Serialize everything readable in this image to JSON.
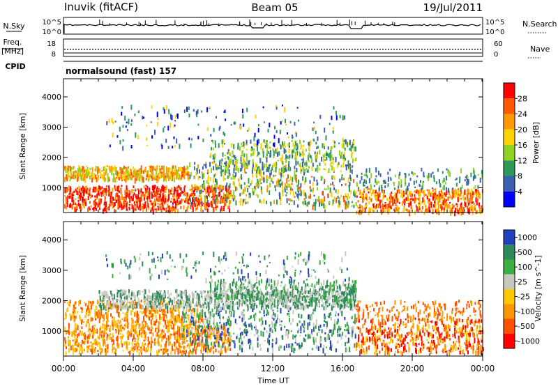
{
  "header": {
    "station": "Inuvik (fitACF)",
    "beam": "Beam 05",
    "date": "19/Jul/2011"
  },
  "chart_data": [
    {
      "type": "line",
      "panel": "noise",
      "left_label": "N.Sky",
      "right_label": "N.Search",
      "left_ticks": [
        "10^5",
        "10^0"
      ],
      "right_ticks": [
        "10^5",
        "10^0"
      ]
    },
    {
      "type": "line",
      "panel": "frequency",
      "left_label_top": "Freq.",
      "left_label_bottom": "[MHz]",
      "right_label": "Nave",
      "left_ticks": [
        "18",
        "8"
      ],
      "right_ticks": [
        "60",
        "0"
      ],
      "cpid_label": "CPID",
      "mode": "normalsound (fast) 157"
    },
    {
      "type": "heatmap",
      "panel": "power",
      "ylabel": "Slant Range [km]",
      "yticks": [
        1000,
        2000,
        3000,
        4000
      ],
      "ylim": [
        180,
        4600
      ],
      "colorbar_label": "Power [dB]",
      "colorbar_ticks": [
        "28",
        "24",
        "20",
        "16",
        "12",
        "8",
        "4"
      ],
      "colors": [
        "#ff0000",
        "#ff5a00",
        "#ff9a00",
        "#ffd200",
        "#8ed320",
        "#2e9a5a",
        "#3a5fb0",
        "#0000ff"
      ]
    },
    {
      "type": "heatmap",
      "panel": "velocity",
      "ylabel": "Slant Range [km]",
      "yticks": [
        1000,
        2000,
        3000,
        4000
      ],
      "ylim": [
        180,
        4600
      ],
      "colorbar_label": "Velocity [m s^-1]",
      "colorbar_ticks": [
        "1000",
        "500",
        "100",
        "25",
        "-25",
        "-100",
        "-500",
        "-1000"
      ],
      "colors": [
        "#2040c0",
        "#2e8a5a",
        "#3ab040",
        "#c8c8c0",
        "#ffc800",
        "#ff9600",
        "#ff5000",
        "#ff0000"
      ]
    }
  ],
  "time_axis": {
    "label": "Time UT",
    "ticks": [
      "00:00",
      "04:00",
      "08:00",
      "12:00",
      "16:00",
      "20:00",
      "00:00"
    ]
  }
}
